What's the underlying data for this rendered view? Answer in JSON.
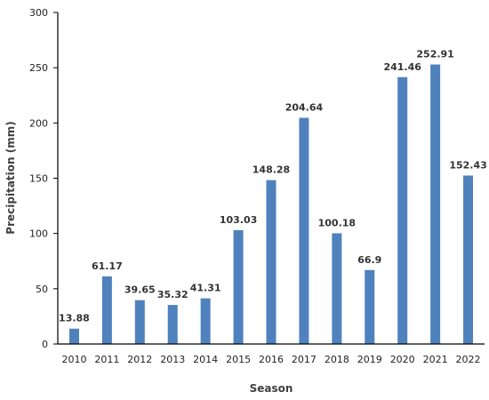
{
  "chart_data": {
    "type": "bar",
    "title": "",
    "xlabel": "Season",
    "ylabel": "Precipitation (mm)",
    "categories": [
      "2010",
      "2011",
      "2012",
      "2013",
      "2014",
      "2015",
      "2016",
      "2017",
      "2018",
      "2019",
      "2020",
      "2021",
      "2022"
    ],
    "values": [
      13.88,
      61.17,
      39.65,
      35.32,
      41.31,
      103.03,
      148.28,
      204.64,
      100.18,
      66.9,
      241.46,
      252.91,
      152.43
    ],
    "data_labels": [
      "13.88",
      "61.17",
      "39.65",
      "35.32",
      "41.31",
      "103.03",
      "148.28",
      "204.64",
      "100.18",
      "66.9",
      "241.46",
      "252.91",
      "152.43"
    ],
    "ylim": [
      0,
      300
    ],
    "yticks": [
      0,
      50,
      100,
      150,
      200,
      250,
      300
    ],
    "grid": false,
    "legend": "none",
    "bar_color": "#4f81bd"
  }
}
